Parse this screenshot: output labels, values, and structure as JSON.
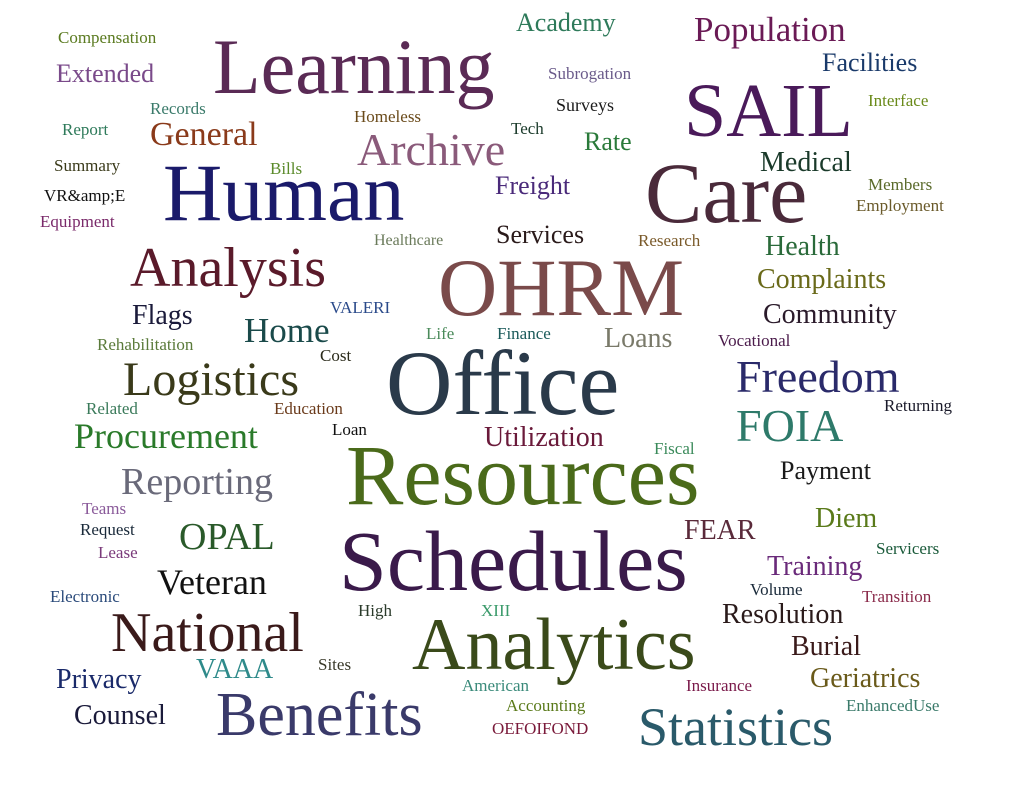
{
  "words": [
    {
      "text": "Compensation",
      "color": "#5a7a1f"
    },
    {
      "text": "Extended",
      "color": "#7a4a8a"
    },
    {
      "text": "Learning",
      "color": "#5a2a55"
    },
    {
      "text": "Academy",
      "color": "#2e7a5a"
    },
    {
      "text": "Population",
      "color": "#6a1a55"
    },
    {
      "text": "Subrogation",
      "color": "#6a5a8a"
    },
    {
      "text": "Facilities",
      "color": "#1a3a6a"
    },
    {
      "text": "SAIL",
      "color": "#4a1a5a"
    },
    {
      "text": "Surveys",
      "color": "#1a1a1a"
    },
    {
      "text": "Records",
      "color": "#3a7a6a"
    },
    {
      "text": "Homeless",
      "color": "#6a4a1a"
    },
    {
      "text": "Interface",
      "color": "#6a8a1a"
    },
    {
      "text": "Report",
      "color": "#2e7a5a"
    },
    {
      "text": "General",
      "color": "#8a3a1a"
    },
    {
      "text": "Tech",
      "color": "#1a3a2a"
    },
    {
      "text": "Rate",
      "color": "#2a7a3a"
    },
    {
      "text": "Archive",
      "color": "#8a5a7a"
    },
    {
      "text": "Summary",
      "color": "#3a3a1a"
    },
    {
      "text": "Bills",
      "color": "#5a8a2a"
    },
    {
      "text": "Medical",
      "color": "#1a3a2a"
    },
    {
      "text": "Human",
      "color": "#1a1a6a"
    },
    {
      "text": "Care",
      "color": "#4a2a3a"
    },
    {
      "text": "VR&amp;E",
      "color": "#111111"
    },
    {
      "text": "Freight",
      "color": "#4a2a7a"
    },
    {
      "text": "Members",
      "color": "#5a6a2a"
    },
    {
      "text": "Equipment",
      "color": "#7a2a6a"
    },
    {
      "text": "Employment",
      "color": "#6a5a2a"
    },
    {
      "text": "Healthcare",
      "color": "#6a7a5a"
    },
    {
      "text": "Services",
      "color": "#2a1a1a"
    },
    {
      "text": "Research",
      "color": "#7a5a2a"
    },
    {
      "text": "Health",
      "color": "#2a6a3a"
    },
    {
      "text": "Analysis",
      "color": "#5a1a2a"
    },
    {
      "text": "OHRM",
      "color": "#7a4a4a"
    },
    {
      "text": "Complaints",
      "color": "#6a6a1a"
    },
    {
      "text": "Flags",
      "color": "#1a1a3a"
    },
    {
      "text": "VALERI",
      "color": "#2a4a8a"
    },
    {
      "text": "Community",
      "color": "#2a1a2a"
    },
    {
      "text": "Home",
      "color": "#1a4a4a"
    },
    {
      "text": "Life",
      "color": "#4a8a5a"
    },
    {
      "text": "Finance",
      "color": "#1a5a5a"
    },
    {
      "text": "Loans",
      "color": "#7a7a6a"
    },
    {
      "text": "Rehabilitation",
      "color": "#5a7a3a"
    },
    {
      "text": "Vocational",
      "color": "#4a1a4a"
    },
    {
      "text": "Cost",
      "color": "#2a2a1a"
    },
    {
      "text": "Office",
      "color": "#2a3a4a"
    },
    {
      "text": "Freedom",
      "color": "#2a2a6a"
    },
    {
      "text": "Logistics",
      "color": "#3a3a1a"
    },
    {
      "text": "Related",
      "color": "#3a7a5a"
    },
    {
      "text": "Education",
      "color": "#6a3a1a"
    },
    {
      "text": "Returning",
      "color": "#1a1a2a"
    },
    {
      "text": "FOIA",
      "color": "#2e7a6a"
    },
    {
      "text": "Loan",
      "color": "#111111"
    },
    {
      "text": "Procurement",
      "color": "#2a7a2a"
    },
    {
      "text": "Utilization",
      "color": "#6a1a3a"
    },
    {
      "text": "Fiscal",
      "color": "#3a8a5a"
    },
    {
      "text": "Resources",
      "color": "#4a6a1a"
    },
    {
      "text": "Payment",
      "color": "#1a1a1a"
    },
    {
      "text": "Reporting",
      "color": "#6a6a7a"
    },
    {
      "text": "Teams",
      "color": "#8a5a9a"
    },
    {
      "text": "Diem",
      "color": "#5a7a1a"
    },
    {
      "text": "Request",
      "color": "#1a2a3a"
    },
    {
      "text": "OPAL",
      "color": "#2a5a2a"
    },
    {
      "text": "FEAR",
      "color": "#5a2a3a"
    },
    {
      "text": "Lease",
      "color": "#7a3a7a"
    },
    {
      "text": "Schedules",
      "color": "#3a1a4a"
    },
    {
      "text": "Servicers",
      "color": "#1a5a3a"
    },
    {
      "text": "Training",
      "color": "#6a2a7a"
    },
    {
      "text": "Veteran",
      "color": "#111111"
    },
    {
      "text": "Volume",
      "color": "#1a2a3a"
    },
    {
      "text": "Electronic",
      "color": "#2a4a7a"
    },
    {
      "text": "Transition",
      "color": "#8a2a4a"
    },
    {
      "text": "High",
      "color": "#2a3a2a"
    },
    {
      "text": "XIII",
      "color": "#3a9a6a"
    },
    {
      "text": "Resolution",
      "color": "#2a1a1a"
    },
    {
      "text": "National",
      "color": "#3a1a1a"
    },
    {
      "text": "Burial",
      "color": "#3a1a1a"
    },
    {
      "text": "Analytics",
      "color": "#3a4a1a"
    },
    {
      "text": "Sites",
      "color": "#3a3a2a"
    },
    {
      "text": "VAAA",
      "color": "#2e8a8a"
    },
    {
      "text": "Privacy",
      "color": "#1a2a6a"
    },
    {
      "text": "Geriatrics",
      "color": "#6a5a1a"
    },
    {
      "text": "American",
      "color": "#3a8a7a"
    },
    {
      "text": "Insurance",
      "color": "#7a1a4a"
    },
    {
      "text": "Counsel",
      "color": "#1a1a3a"
    },
    {
      "text": "Accounting",
      "color": "#5a7a1a"
    },
    {
      "text": "EnhancedUse",
      "color": "#3a7a6a"
    },
    {
      "text": "Benefits",
      "color": "#3a3a6a"
    },
    {
      "text": "Statistics",
      "color": "#2a5a6a"
    },
    {
      "text": "OEFOIFOND",
      "color": "#7a1a3a"
    }
  ]
}
